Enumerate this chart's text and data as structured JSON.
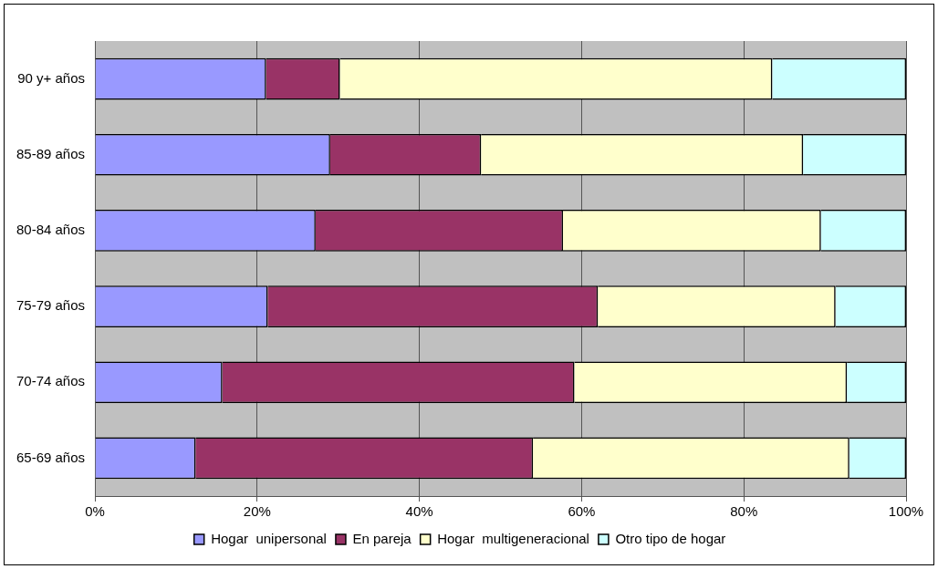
{
  "chart_data": {
    "type": "bar",
    "orientation": "horizontal",
    "stacked": true,
    "categories": [
      "90 y+ años",
      "85-89 años",
      "80-84 años",
      "75-79 años",
      "70-74 años",
      "65-69 años"
    ],
    "series": [
      {
        "name": "Hogar  unipersonal",
        "color": "#9999ff",
        "values": [
          21.1,
          29.0,
          27.2,
          21.3,
          15.7,
          12.4
        ]
      },
      {
        "name": "En pareja",
        "color": "#993366",
        "values": [
          9.1,
          18.6,
          30.5,
          40.7,
          43.4,
          41.6
        ]
      },
      {
        "name": "Hogar  multigeneracional",
        "color": "#ffffcc",
        "values": [
          53.3,
          39.7,
          31.8,
          29.3,
          33.6,
          39.0
        ]
      },
      {
        "name": "Otro tipo de hogar",
        "color": "#ccffff",
        "values": [
          16.5,
          12.7,
          10.5,
          8.7,
          7.3,
          7.0
        ]
      }
    ],
    "xlim": [
      0,
      100
    ],
    "xticks": [
      {
        "value": 0,
        "label": "0%"
      },
      {
        "value": 20,
        "label": "20%"
      },
      {
        "value": 40,
        "label": "40%"
      },
      {
        "value": 60,
        "label": "60%"
      },
      {
        "value": 80,
        "label": "80%"
      },
      {
        "value": 100,
        "label": "100%"
      }
    ],
    "grid": "x",
    "legend": "bottom"
  }
}
